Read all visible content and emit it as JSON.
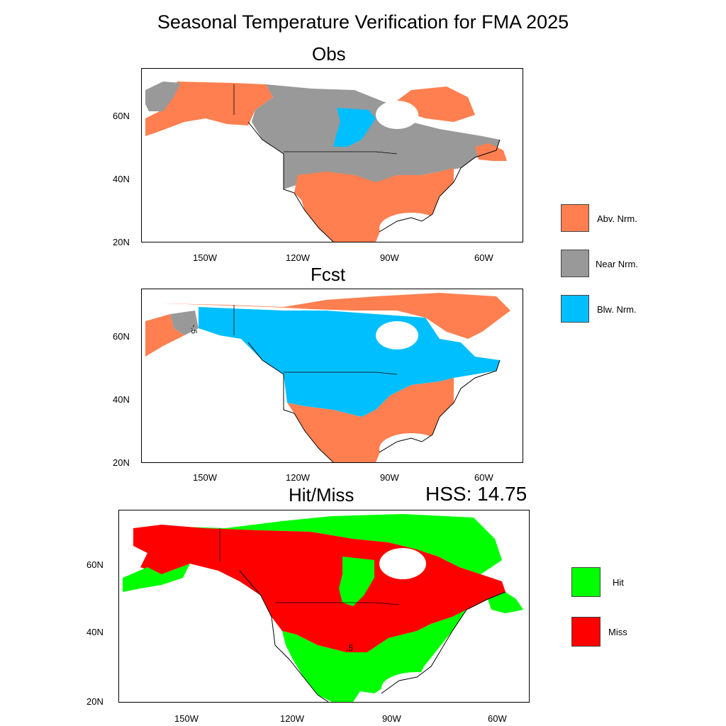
{
  "title": "Seasonal Temperature Verification for FMA 2025",
  "panels": {
    "obs": {
      "title": "Obs"
    },
    "fcst": {
      "title": "Fcst"
    },
    "hitmiss": {
      "title": "Hit/Miss",
      "score_label": "HSS: 14.75"
    }
  },
  "axes": {
    "lon_ticks": [
      "150W",
      "120W",
      "90W",
      "60W"
    ],
    "lat_ticks": [
      "60N",
      "40N",
      "20N"
    ]
  },
  "contour_labels": {
    "fcst": "-.5",
    "hitmiss": ".5"
  },
  "legend_categories": {
    "items": [
      {
        "label": "Abv. Nrm.",
        "color": "#ff7f50"
      },
      {
        "label": "Near Nrm.",
        "color": "#999999"
      },
      {
        "label": "Blw. Nrm.",
        "color": "#00bfff"
      }
    ]
  },
  "legend_hitmiss": {
    "items": [
      {
        "label": "Hit",
        "color": "#00ff00"
      },
      {
        "label": "Miss",
        "color": "#ff0000"
      }
    ]
  },
  "colors": {
    "ocean": "#ffffff",
    "coast": "#000000"
  }
}
